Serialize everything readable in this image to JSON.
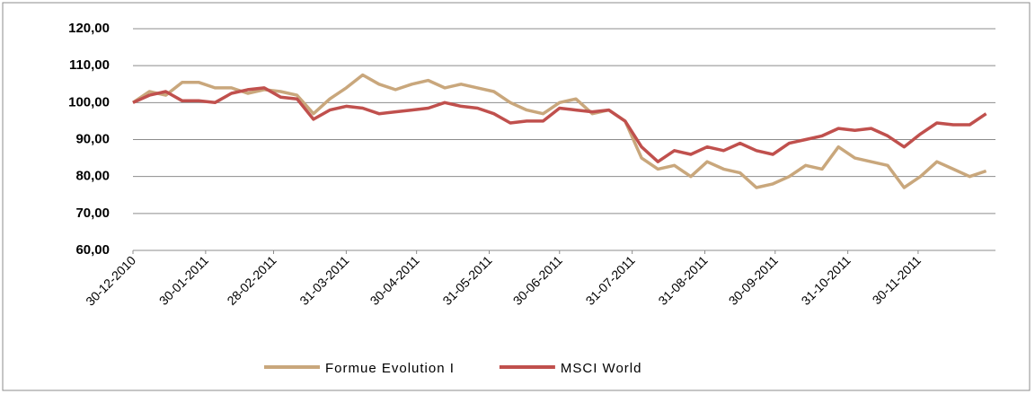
{
  "chart_data": {
    "type": "line",
    "x": [
      "30-12-2010",
      "06-01-2011",
      "13-01-2011",
      "20-01-2011",
      "27-01-2011",
      "03-02-2011",
      "10-02-2011",
      "17-02-2011",
      "24-02-2011",
      "03-03-2011",
      "10-03-2011",
      "17-03-2011",
      "24-03-2011",
      "31-03-2011",
      "07-04-2011",
      "14-04-2011",
      "21-04-2011",
      "28-04-2011",
      "05-05-2011",
      "12-05-2011",
      "19-05-2011",
      "26-05-2011",
      "02-06-2011",
      "09-06-2011",
      "16-06-2011",
      "23-06-2011",
      "30-06-2011",
      "07-07-2011",
      "14-07-2011",
      "21-07-2011",
      "28-07-2011",
      "04-08-2011",
      "11-08-2011",
      "18-08-2011",
      "25-08-2011",
      "01-09-2011",
      "08-09-2011",
      "15-09-2011",
      "22-09-2011",
      "29-09-2011",
      "06-10-2011",
      "13-10-2011",
      "20-10-2011",
      "27-10-2011",
      "03-11-2011",
      "10-11-2011",
      "17-11-2011",
      "24-11-2011",
      "01-12-2011",
      "08-12-2011",
      "15-12-2011",
      "22-12-2011",
      "29-12-2011"
    ],
    "series": [
      {
        "name": "Formue Evolution I",
        "color": "#c9a77c",
        "values": [
          100,
          103,
          102,
          105.5,
          105.5,
          104,
          104,
          102.5,
          103.5,
          103,
          102,
          97,
          101,
          104,
          107.5,
          105,
          103.5,
          105,
          106,
          104,
          105,
          104,
          103,
          100,
          98,
          97,
          100,
          101,
          97,
          98,
          95,
          85,
          82,
          83,
          80,
          84,
          82,
          81,
          77,
          78,
          80,
          83,
          82,
          88,
          85,
          84,
          83,
          77,
          80,
          84,
          82,
          80,
          81.5
        ]
      },
      {
        "name": "MSCI World",
        "color": "#c0504d",
        "values": [
          100,
          102,
          103,
          100.5,
          100.5,
          100,
          102.5,
          103.5,
          104,
          101.5,
          101,
          95.5,
          98,
          99,
          98.5,
          97,
          97.5,
          98,
          98.5,
          100,
          99,
          98.5,
          97,
          94.5,
          95,
          95,
          98.5,
          98,
          97.5,
          98,
          95,
          88,
          84,
          87,
          86,
          88,
          87,
          89,
          87,
          86,
          89,
          90,
          91,
          93,
          92.5,
          93,
          91,
          88,
          91.5,
          94.5,
          94,
          94,
          97
        ]
      }
    ],
    "xticks": [
      "30-12-2010",
      "30-01-2011",
      "28-02-2011",
      "31-03-2011",
      "30-04-2011",
      "31-05-2011",
      "30-06-2011",
      "31-07-2011",
      "31-08-2011",
      "30-09-2011",
      "31-10-2011",
      "30-11-2011"
    ],
    "xlim": [
      "30-12-2010",
      "02-01-2012"
    ],
    "ylim": [
      60,
      120
    ],
    "yticks": [
      {
        "value": 60,
        "label": "60,00"
      },
      {
        "value": 70,
        "label": "70,00"
      },
      {
        "value": 80,
        "label": "80,00"
      },
      {
        "value": 90,
        "label": "90,00"
      },
      {
        "value": 100,
        "label": "100,00"
      },
      {
        "value": 110,
        "label": "110,00"
      },
      {
        "value": 120,
        "label": "120,00"
      }
    ],
    "grid": true,
    "legend": "bottom"
  }
}
